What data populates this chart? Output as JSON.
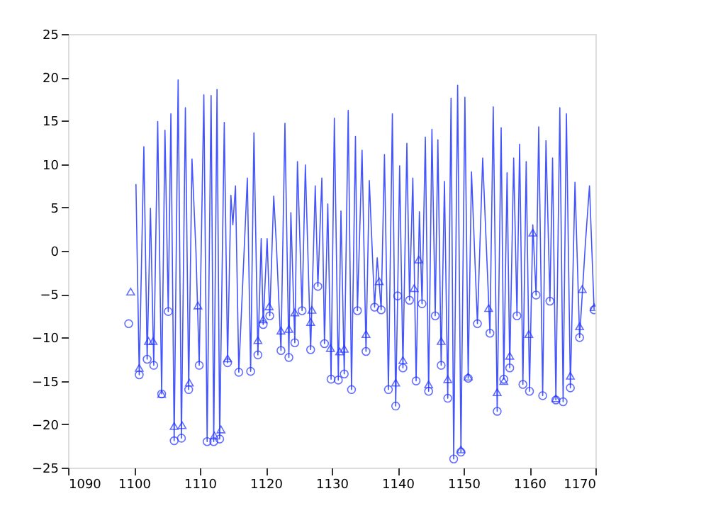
{
  "chart_data": {
    "type": "line",
    "xlim": [
      1090,
      1170
    ],
    "ylim": [
      -25,
      25
    ],
    "xticks": [
      1090,
      1100,
      1110,
      1120,
      1130,
      1140,
      1150,
      1160,
      1170
    ],
    "yticks": [
      -25,
      -20,
      -15,
      -10,
      -5,
      0,
      5,
      10,
      15,
      20,
      25
    ],
    "grid": false,
    "series": [
      {
        "color": "#4455ff",
        "marker": "none",
        "line_style": "solid",
        "x": [
          1100.3,
          1100.8,
          1101.5,
          1102.0,
          1102.5,
          1103.0,
          1103.6,
          1104.2,
          1104.7,
          1105.2,
          1105.6,
          1106.1,
          1106.7,
          1107.2,
          1107.8,
          1108.3,
          1108.8,
          1109.4,
          1109.9,
          1110.6,
          1111.1,
          1111.7,
          1112.1,
          1112.6,
          1113.0,
          1113.7,
          1114.2,
          1114.7,
          1115.0,
          1115.4,
          1115.9,
          1117.2,
          1117.7,
          1118.2,
          1118.8,
          1119.3,
          1119.6,
          1120.2,
          1120.6,
          1121.2,
          1121.6,
          1122.3,
          1122.9,
          1123.5,
          1123.8,
          1124.4,
          1124.8,
          1125.5,
          1126.0,
          1126.8,
          1127.5,
          1127.9,
          1128.5,
          1128.9,
          1129.4,
          1129.9,
          1130.4,
          1131.0,
          1131.4,
          1131.9,
          1132.5,
          1133.0,
          1133.6,
          1133.9,
          1134.6,
          1135.2,
          1135.7,
          1136.5,
          1136.9,
          1137.5,
          1138.0,
          1138.6,
          1139.2,
          1139.7,
          1140.0,
          1140.3,
          1140.8,
          1141.4,
          1141.8,
          1142.3,
          1142.8,
          1143.3,
          1143.7,
          1144.2,
          1144.7,
          1145.2,
          1145.7,
          1146.1,
          1146.6,
          1147.1,
          1147.6,
          1148.1,
          1148.5,
          1149.1,
          1149.6,
          1150.2,
          1150.7,
          1151.2,
          1152.1,
          1152.9,
          1154.0,
          1154.5,
          1155.1,
          1155.7,
          1156.1,
          1156.6,
          1157.0,
          1157.6,
          1158.1,
          1158.5,
          1159.0,
          1159.5,
          1160.0,
          1160.5,
          1161.0,
          1161.4,
          1162.0,
          1162.5,
          1163.1,
          1163.5,
          1164.0,
          1164.6,
          1165.1,
          1165.6,
          1166.2,
          1166.9,
          1167.6,
          1168.5,
          1169.1,
          1169.8
        ],
        "values": [
          7.7,
          -14.3,
          12.0,
          -12.5,
          4.9,
          -13.2,
          14.9,
          -16.5,
          13.9,
          -7.0,
          15.8,
          -21.9,
          19.7,
          -21.6,
          16.5,
          -16.0,
          10.6,
          0,
          -13.2,
          18,
          -22,
          17.9,
          -22,
          18.6,
          -21.7,
          14.8,
          -12.9,
          6.4,
          3.0,
          7.5,
          -14.0,
          8.4,
          -13.9,
          13.6,
          -12.0,
          1.4,
          -8.5,
          1.4,
          -7.5,
          6.3,
          0.8,
          -11.5,
          14.7,
          -12.3,
          4.4,
          -10.6,
          10.3,
          -6.9,
          9.9,
          -11.4,
          7.5,
          -4.1,
          8.4,
          -10.7,
          5.4,
          -14.8,
          15.3,
          -14.9,
          4.6,
          -14.2,
          16.2,
          -16.0,
          13.2,
          -6.9,
          11.6,
          -11.6,
          8.1,
          -6.5,
          -0.8,
          -6.8,
          11.1,
          -16.0,
          15.8,
          -17.9,
          -5.2,
          9.8,
          -13.5,
          12.4,
          -5.7,
          8.4,
          -15,
          4.5,
          -6.1,
          13.1,
          -16.2,
          14.0,
          -7.5,
          12.8,
          -13.2,
          8.0,
          -17.0,
          17.6,
          -24.0,
          19.1,
          -23.2,
          17.7,
          -14.7,
          9.1,
          -8.4,
          10.7,
          -9.5,
          16.6,
          -18.5,
          14.2,
          -14.8,
          9.0,
          -13.5,
          10.7,
          -7.5,
          12.3,
          -15.4,
          10.3,
          -16.2,
          3.0,
          -5.1,
          14.3,
          -16.7,
          12.7,
          -5.8,
          10.7,
          -17.2,
          16.5,
          -17.4,
          15.8,
          -15.8,
          7.9,
          -10.0,
          1.1,
          7.5,
          -6.8
        ]
      },
      {
        "type": "scatter",
        "color": "#2233ff",
        "marker": "circle",
        "x": [
          1099.2,
          1100.8,
          1102.0,
          1103.0,
          1104.2,
          1105.2,
          1106.1,
          1107.2,
          1108.3,
          1109.9,
          1111.1,
          1112.1,
          1113.0,
          1114.2,
          1115.9,
          1117.7,
          1118.8,
          1119.6,
          1120.6,
          1122.3,
          1123.5,
          1124.4,
          1125.5,
          1126.8,
          1127.9,
          1128.9,
          1129.9,
          1131.0,
          1131.9,
          1133.0,
          1133.9,
          1135.2,
          1136.5,
          1137.5,
          1138.6,
          1139.7,
          1140.0,
          1140.8,
          1141.8,
          1142.8,
          1143.7,
          1144.7,
          1145.7,
          1146.6,
          1147.6,
          1148.5,
          1149.6,
          1150.7,
          1152.1,
          1154.0,
          1155.1,
          1156.1,
          1157.0,
          1158.1,
          1159.0,
          1160.0,
          1161.0,
          1162.0,
          1163.1,
          1164.0,
          1165.1,
          1166.2,
          1167.6,
          1169.8
        ],
        "values": [
          -8.4,
          -14.3,
          -12.5,
          -13.2,
          -16.5,
          -7.0,
          -21.9,
          -21.6,
          -16.0,
          -13.2,
          -22,
          -22,
          -21.7,
          -12.9,
          -14.0,
          -13.9,
          -12.0,
          -8.5,
          -7.5,
          -11.5,
          -12.3,
          -10.6,
          -6.9,
          -11.4,
          -4.1,
          -10.7,
          -14.8,
          -14.9,
          -14.2,
          -16.0,
          -6.9,
          -11.6,
          -6.5,
          -6.8,
          -16.0,
          -17.9,
          -5.2,
          -13.5,
          -5.7,
          -15,
          -6.1,
          -16.2,
          -7.5,
          -13.2,
          -17.0,
          -24.0,
          -23.2,
          -14.7,
          -8.4,
          -9.5,
          -18.5,
          -14.8,
          -13.5,
          -7.5,
          -15.4,
          -16.2,
          -5.1,
          -16.7,
          -5.8,
          -17.2,
          -17.4,
          -15.8,
          -10.0,
          -6.8
        ]
      },
      {
        "type": "scatter",
        "color": "#2233ff",
        "marker": "triangle",
        "x": [
          1099.5,
          1100.8,
          1102.2,
          1102.9,
          1104.2,
          1106.1,
          1107.3,
          1108.4,
          1109.7,
          1112.2,
          1113.2,
          1114.2,
          1118.8,
          1119.6,
          1120.5,
          1122.3,
          1123.5,
          1124.4,
          1126.8,
          1127.0,
          1129.8,
          1131.2,
          1131.9,
          1135.2,
          1137.2,
          1139.7,
          1140.8,
          1142.5,
          1143.2,
          1144.7,
          1146.6,
          1147.6,
          1149.6,
          1150.7,
          1153.8,
          1155.1,
          1156.1,
          1157.0,
          1159.9,
          1160.5,
          1164.0,
          1166.2,
          1167.6,
          1168.0,
          1169.8
        ],
        "values": [
          -4.7,
          -13.5,
          -10.4,
          -10.4,
          -16.5,
          -20.2,
          -20.1,
          -15.2,
          -6.3,
          -21.3,
          -20.6,
          -12.4,
          -10.3,
          -7.9,
          -6.4,
          -9.2,
          -9.0,
          -7.1,
          -8.2,
          -6.8,
          -11.2,
          -11.6,
          -11.3,
          -9.6,
          -3.5,
          -15.2,
          -12.6,
          -4.3,
          -1.0,
          -15.4,
          -10.4,
          -14.8,
          -22.9,
          -14.5,
          -6.6,
          -16.3,
          -15.0,
          -12.1,
          -9.6,
          2.1,
          -17.0,
          -14.4,
          -8.7,
          -4.4,
          -6.5
        ]
      }
    ]
  }
}
